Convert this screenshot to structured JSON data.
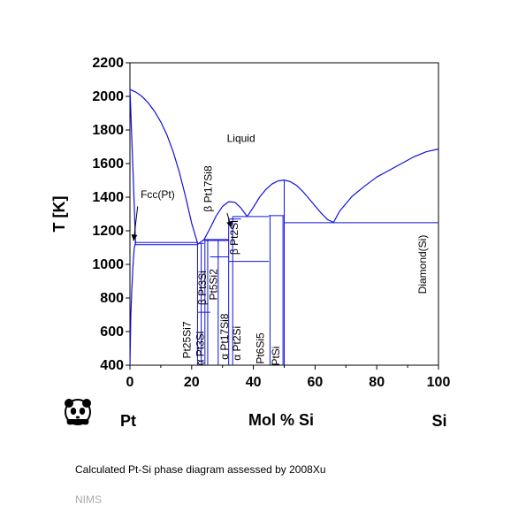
{
  "chart_data": {
    "type": "line",
    "title": "",
    "xlabel": "Mol % Si",
    "ylabel": "T [K]",
    "xlim": [
      0,
      100
    ],
    "ylim": [
      400,
      2200
    ],
    "xticks": [
      0,
      20,
      40,
      60,
      80,
      100
    ],
    "yticks": [
      400,
      600,
      800,
      1000,
      1200,
      1400,
      1600,
      1800,
      2000,
      2200
    ],
    "grid": false,
    "left_component": "Pt",
    "right_component": "Si",
    "line_color": "#1010e0",
    "series": [
      {
        "role": "liquidus-left",
        "x": [
          0,
          2,
          4,
          6,
          8,
          10,
          12,
          14,
          16,
          18,
          20,
          22
        ],
        "y": [
          2041,
          2025,
          1998,
          1960,
          1910,
          1848,
          1770,
          1670,
          1550,
          1405,
          1245,
          1120
        ]
      },
      {
        "role": "liquidus-dome-1",
        "x": [
          22,
          24,
          26,
          28,
          30,
          32,
          34,
          36,
          38
        ],
        "y": [
          1120,
          1148,
          1215,
          1290,
          1345,
          1373,
          1370,
          1335,
          1285
        ]
      },
      {
        "role": "liquidus-dome-2",
        "x": [
          38,
          40,
          42,
          44,
          46,
          48,
          50,
          52,
          54,
          56,
          58,
          60,
          62,
          64,
          66
        ],
        "y": [
          1285,
          1340,
          1400,
          1445,
          1478,
          1497,
          1502,
          1492,
          1470,
          1435,
          1392,
          1348,
          1305,
          1267,
          1250
        ]
      },
      {
        "role": "liquidus-right",
        "x": [
          66,
          68,
          72,
          76,
          80,
          84,
          88,
          92,
          96,
          100
        ],
        "y": [
          1250,
          1318,
          1405,
          1465,
          1520,
          1560,
          1600,
          1640,
          1670,
          1687
        ]
      },
      {
        "role": "fcc-solvus",
        "x": [
          0,
          0.3,
          0.6,
          1.0,
          1.4,
          1.8,
          1.5,
          1.0,
          0.5,
          0.2,
          0
        ],
        "y": [
          400,
          700,
          850,
          1000,
          1100,
          1125,
          1300,
          1550,
          1800,
          1950,
          2041
        ]
      }
    ],
    "horizontal_lines": [
      {
        "x": [
          1.5,
          22.0
        ],
        "y": 1130
      },
      {
        "x": [
          1.5,
          22.0
        ],
        "y": 1117
      },
      {
        "x": [
          22.0,
          24.0
        ],
        "y": 1125
      },
      {
        "x": [
          24.0,
          32.0
        ],
        "y": 1148
      },
      {
        "x": [
          24.0,
          32.0
        ],
        "y": 1142
      },
      {
        "x": [
          26.0,
          32.0
        ],
        "y": 1045
      },
      {
        "x": [
          32.0,
          36.0
        ],
        "y": 1270
      },
      {
        "x": [
          32.0,
          45.0
        ],
        "y": 1018
      },
      {
        "x": [
          33.3,
          45.0
        ],
        "y": 1285
      },
      {
        "x": [
          45.0,
          50.0
        ],
        "y": 1290
      },
      {
        "x": [
          50.0,
          100.0
        ],
        "y": 1248
      },
      {
        "x": [
          22.0,
          26.0
        ],
        "y": 715
      }
    ],
    "vertical_lines": [
      {
        "x": 21.9,
        "y": [
          400,
          1125
        ]
      },
      {
        "x": 23.1,
        "y": [
          400,
          1125
        ]
      },
      {
        "x": 24.3,
        "y": [
          400,
          1148
        ]
      },
      {
        "x": 25.2,
        "y": [
          400,
          1148
        ]
      },
      {
        "x": 28.6,
        "y": [
          400,
          1142
        ]
      },
      {
        "x": 32.0,
        "y": [
          400,
          1270
        ]
      },
      {
        "x": 33.3,
        "y": [
          400,
          1285
        ]
      },
      {
        "x": 45.4,
        "y": [
          400,
          1290
        ]
      },
      {
        "x": 49.6,
        "y": [
          400,
          1290
        ]
      },
      {
        "x": 50.0,
        "y": [
          400,
          1502
        ]
      }
    ],
    "labels": [
      {
        "text": "Liquid",
        "x": 36,
        "y": 1730,
        "rotation": 0
      },
      {
        "text": "Fcc(Pt)",
        "x": 9,
        "y": 1395,
        "rotation": 0
      },
      {
        "text": "Diamond(Si)",
        "x": 96,
        "y": 1000,
        "rotation": -90
      },
      {
        "text": "β Pt17Si8",
        "x": 26.5,
        "y": 1450,
        "rotation": -90
      },
      {
        "text": "β Pt2Si",
        "x": 35,
        "y": 1160,
        "rotation": -90
      },
      {
        "text": "Pt25Si7",
        "x": 19.6,
        "y": 550,
        "rotation": -90
      },
      {
        "text": "α Pt3Si",
        "x": 23.9,
        "y": 500,
        "rotation": -90
      },
      {
        "text": "β Pt3Si",
        "x": 24.6,
        "y": 860,
        "rotation": -90
      },
      {
        "text": "Pt5Si2",
        "x": 28.2,
        "y": 880,
        "rotation": -90
      },
      {
        "text": "α Pt17Si8",
        "x": 31.8,
        "y": 570,
        "rotation": -90
      },
      {
        "text": "α Pt2Si",
        "x": 35.8,
        "y": 530,
        "rotation": -90
      },
      {
        "text": "Pt6Si5",
        "x": 43.4,
        "y": 500,
        "rotation": -90
      },
      {
        "text": "PtSi",
        "x": 48.4,
        "y": 455,
        "rotation": -90
      }
    ],
    "annotation_arrows": [
      {
        "from": [
          2.5,
          1345
        ],
        "to": [
          1.2,
          1140
        ]
      },
      {
        "from": [
          31.5,
          1305
        ],
        "to": [
          32.8,
          1218
        ]
      }
    ]
  },
  "caption": "Calculated Pt-Si phase diagram assessed by 2008Xu",
  "watermark": "NIMS",
  "logo_icon": "panda-logo-icon"
}
